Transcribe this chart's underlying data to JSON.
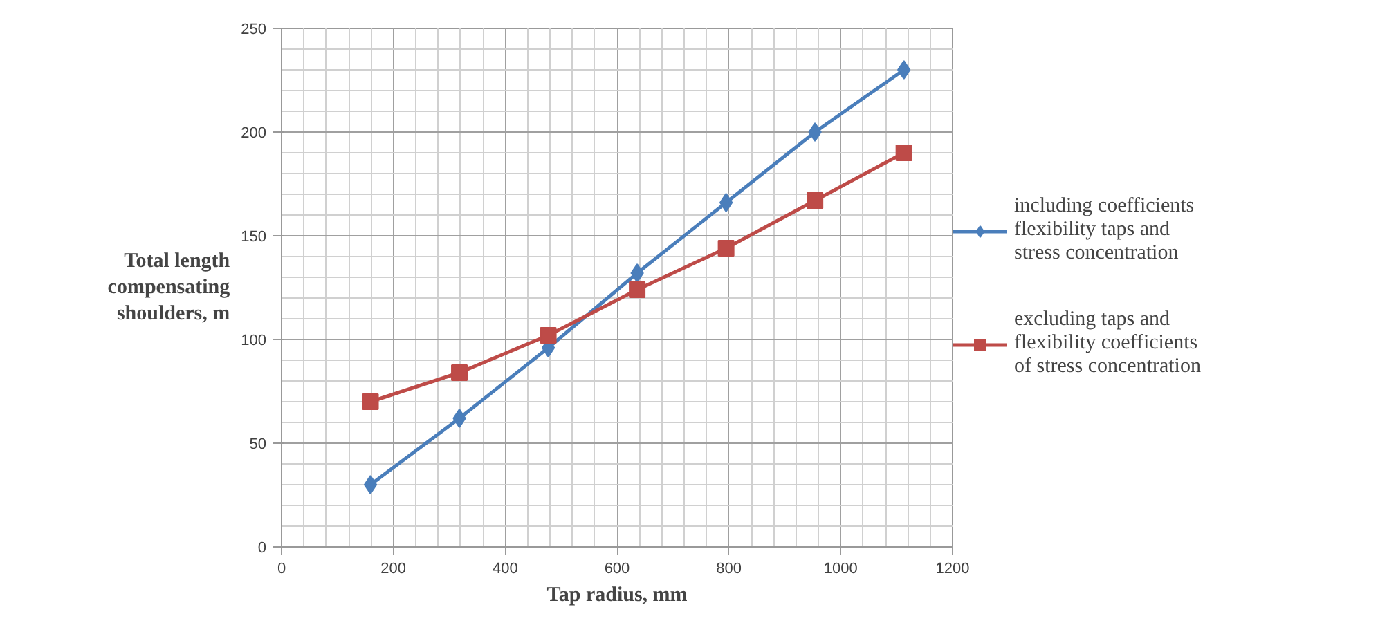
{
  "chart_data": {
    "type": "line",
    "xlabel": "Tap radius, mm",
    "ylabel": "Total length compensating shoulders, m",
    "x": [
      159,
      318,
      477,
      636,
      795,
      954,
      1113
    ],
    "series": [
      {
        "name": "including coefficients flexibility taps and stress concentration",
        "color": "#4a7ebb",
        "marker": "diamond",
        "values": [
          30,
          62,
          96,
          132,
          166,
          200,
          230
        ]
      },
      {
        "name": "excluding taps and flexibility coefficients of stress concentration",
        "color": "#be4b48",
        "marker": "square",
        "values": [
          70,
          84,
          102,
          124,
          144,
          167,
          190
        ]
      }
    ],
    "xlim": [
      0,
      1200
    ],
    "xticks": [
      0,
      200,
      400,
      600,
      800,
      1000,
      1200
    ],
    "ylim": [
      0,
      250
    ],
    "yticks": [
      0,
      50,
      100,
      150,
      200,
      250
    ],
    "grid": true,
    "legend": "right",
    "line_style": "solid"
  }
}
